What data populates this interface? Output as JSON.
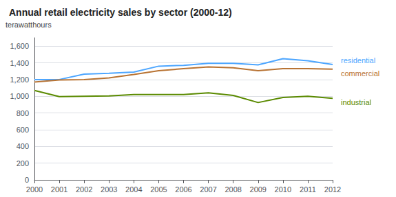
{
  "chart_data": {
    "type": "line",
    "title": "Annual retail electricity sales by sector (2000-12)",
    "ylabel": "terawatthours",
    "categories": [
      "2000",
      "2001",
      "2002",
      "2003",
      "2004",
      "2005",
      "2006",
      "2007",
      "2008",
      "2009",
      "2010",
      "2011",
      "2012"
    ],
    "series": [
      {
        "name": "residential",
        "color": "#4da6ff",
        "values": [
          1200,
          1200,
          1265,
          1275,
          1290,
          1360,
          1370,
          1395,
          1395,
          1375,
          1450,
          1425,
          1380
        ]
      },
      {
        "name": "commercial",
        "color": "#b87333",
        "values": [
          1170,
          1195,
          1200,
          1220,
          1260,
          1305,
          1330,
          1350,
          1340,
          1305,
          1330,
          1330,
          1325
        ]
      },
      {
        "name": "industrial",
        "color": "#5a8a00",
        "values": [
          1070,
          995,
          1000,
          1005,
          1020,
          1020,
          1020,
          1040,
          1010,
          925,
          985,
          1000,
          975
        ]
      }
    ],
    "ylim": [
      0,
      1700
    ],
    "yticks": [
      0,
      200,
      400,
      600,
      800,
      {
        "value": 1000,
        "label": "1,000"
      },
      {
        "value": 1200,
        "label": "1,200"
      },
      {
        "value": 1400,
        "label": "1,400"
      },
      {
        "value": 1600,
        "label": "1,600"
      }
    ],
    "grid": true
  }
}
